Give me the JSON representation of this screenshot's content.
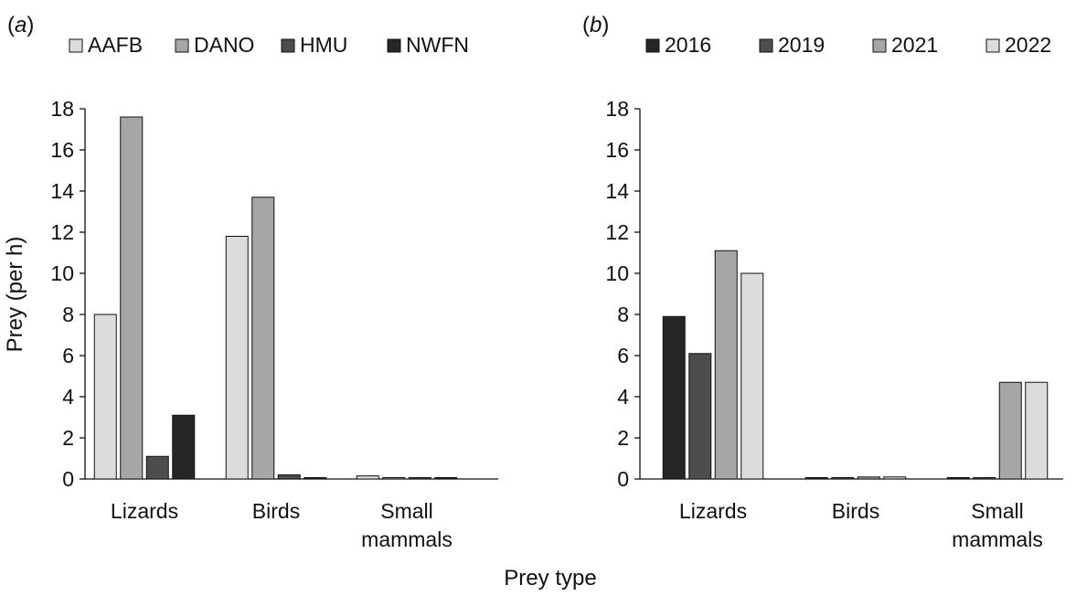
{
  "figure": {
    "shared_xlabel": "Prey type",
    "shared_ylabel": "Prey (per h)"
  },
  "chart_data": [
    {
      "type": "bar",
      "panel_label": "(a)",
      "panel_letter": "a",
      "categories": [
        "Lizards",
        "Birds",
        "Small mammals"
      ],
      "category_labels": [
        [
          "Lizards"
        ],
        [
          "Birds"
        ],
        [
          "Small",
          "mammals"
        ]
      ],
      "series": [
        {
          "name": "AAFB",
          "values": [
            8.0,
            11.8,
            0.15
          ],
          "color": "#dcdcdc"
        },
        {
          "name": "DANO",
          "values": [
            17.6,
            13.7,
            0.05
          ],
          "color": "#a6a6a6"
        },
        {
          "name": "HMU",
          "values": [
            1.1,
            0.2,
            0.05
          ],
          "color": "#4d4d4d"
        },
        {
          "name": "NWFN",
          "values": [
            3.1,
            0.05,
            0.05
          ],
          "color": "#262626"
        }
      ],
      "ylabel": "Prey (per h)",
      "xlabel": "Prey type",
      "ylim": [
        0,
        18
      ],
      "yticks": [
        0,
        2,
        4,
        6,
        8,
        10,
        12,
        14,
        16,
        18
      ],
      "grid": false,
      "legend": "top"
    },
    {
      "type": "bar",
      "panel_label": "(b)",
      "panel_letter": "b",
      "categories": [
        "Lizards",
        "Birds",
        "Small mammals"
      ],
      "category_labels": [
        [
          "Lizards"
        ],
        [
          "Birds"
        ],
        [
          "Small",
          "mammals"
        ]
      ],
      "series": [
        {
          "name": "2016",
          "values": [
            7.9,
            0.05,
            0.05
          ],
          "color": "#262626"
        },
        {
          "name": "2019",
          "values": [
            6.1,
            0.05,
            0.05
          ],
          "color": "#4d4d4d"
        },
        {
          "name": "2021",
          "values": [
            11.1,
            0.1,
            4.7
          ],
          "color": "#a6a6a6"
        },
        {
          "name": "2022",
          "values": [
            10.0,
            0.1,
            4.7
          ],
          "color": "#dcdcdc"
        }
      ],
      "ylabel": "",
      "xlabel": "Prey type",
      "ylim": [
        0,
        18
      ],
      "yticks": [
        0,
        2,
        4,
        6,
        8,
        10,
        12,
        14,
        16,
        18
      ],
      "grid": false,
      "legend": "top"
    }
  ]
}
